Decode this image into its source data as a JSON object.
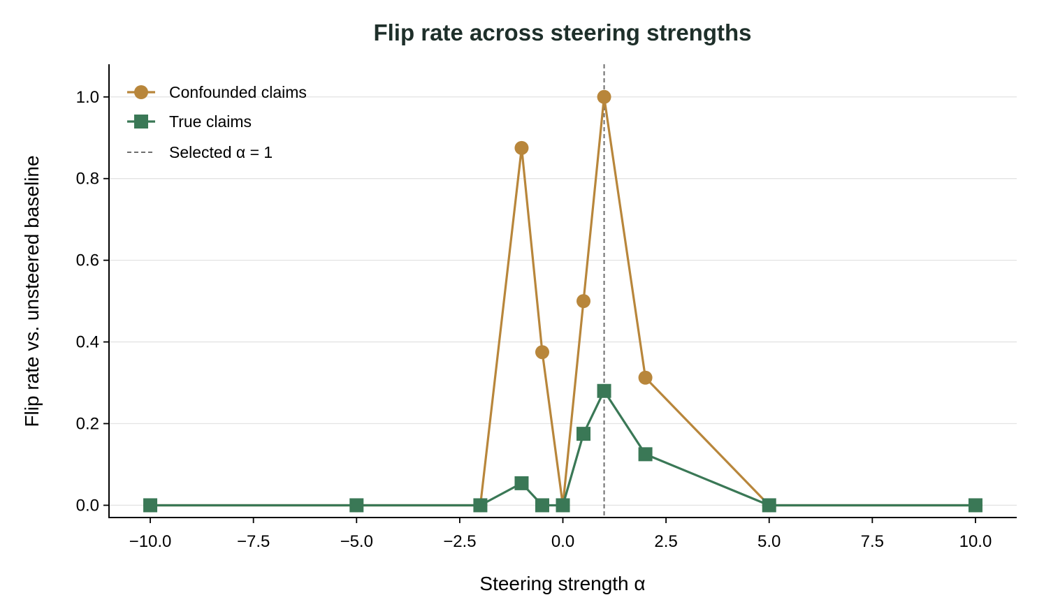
{
  "chart_data": {
    "type": "line",
    "title": "Flip rate across steering strengths",
    "xlabel": "Steering strength α",
    "ylabel": "Flip rate vs. unsteered baseline",
    "xlim": [
      -11.0,
      11.0
    ],
    "ylim": [
      -0.03,
      1.08
    ],
    "xticks": [
      -10.0,
      -7.5,
      -5.0,
      -2.5,
      0.0,
      2.5,
      5.0,
      7.5,
      10.0
    ],
    "xtick_labels": [
      "−10.0",
      "−7.5",
      "−5.0",
      "−2.5",
      "0.0",
      "2.5",
      "5.0",
      "7.5",
      "10.0"
    ],
    "yticks": [
      0.0,
      0.2,
      0.4,
      0.6,
      0.8,
      1.0
    ],
    "ytick_labels": [
      "0.0",
      "0.2",
      "0.4",
      "0.6",
      "0.8",
      "1.0"
    ],
    "grid": "horizontal",
    "legend_position": "top-left",
    "x": [
      -10,
      -5,
      -2,
      -1,
      -0.5,
      0,
      0.5,
      1,
      2,
      5,
      10
    ],
    "series": [
      {
        "name": "Confounded claims",
        "marker": "circle",
        "color": "#b8863b",
        "values": [
          0.0,
          0.0,
          0.0,
          0.875,
          0.375,
          0.0,
          0.5,
          1.0,
          0.3125,
          0.0,
          0.0
        ]
      },
      {
        "name": "True claims",
        "marker": "square",
        "color": "#3a7856",
        "values": [
          0.0,
          0.0,
          0.0,
          0.054,
          0.0,
          0.0,
          0.175,
          0.28,
          0.125,
          0.0,
          0.0
        ]
      }
    ],
    "reference_line": {
      "orientation": "vertical",
      "x": 1,
      "label": "Selected α = 1",
      "style": "dashed",
      "color": "#6e6e6e"
    }
  }
}
